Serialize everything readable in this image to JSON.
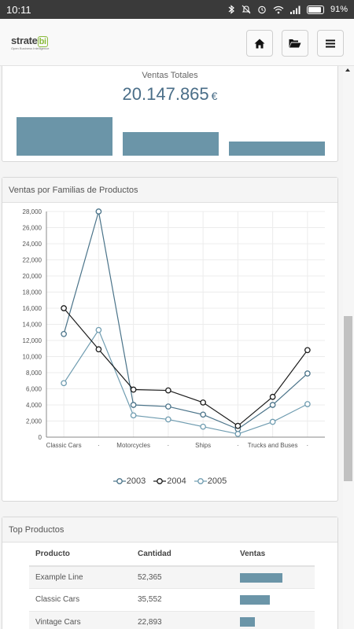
{
  "status_bar": {
    "time": "10:11",
    "battery": "91%",
    "icons": [
      "bluetooth-icon",
      "mute-icon",
      "alarm-icon",
      "wifi-icon",
      "signal-icon",
      "battery-icon"
    ]
  },
  "header": {
    "logo_main": "strate",
    "logo_bi": "bi",
    "logo_sub": "Open Business Intelligence",
    "buttons": [
      "home-icon",
      "folder-open-icon",
      "menu-icon"
    ]
  },
  "kpi": {
    "title": "Ventas Totales",
    "value": "20.147.865",
    "currency": "€",
    "bar_values": [
      1.0,
      0.62,
      0.37
    ]
  },
  "chart_panel": {
    "title": "Ventas por Familias de Productos"
  },
  "chart_data": {
    "type": "line",
    "categories": [
      "Classic Cars",
      "",
      "Motorcycles",
      "",
      "Ships",
      "",
      "Trucks and Buses",
      ""
    ],
    "x_tick_labels": [
      "Classic Cars",
      "·",
      "Motorcycles",
      "·",
      "Ships",
      "·",
      "Trucks and Buses",
      "·"
    ],
    "y_ticks": [
      "0",
      "2,000",
      "4,000",
      "6,000",
      "8,000",
      "10,000",
      "12,000",
      "14,000",
      "16,000",
      "18,000",
      "20,000",
      "22,000",
      "24,000",
      "26,000",
      "28,000"
    ],
    "ylim": [
      0,
      28000
    ],
    "grid": true,
    "legend_position": "bottom",
    "series": [
      {
        "name": "2003",
        "color": "#4a7389",
        "values": [
          12800,
          28000,
          4000,
          3800,
          2800,
          1000,
          4000,
          7900
        ]
      },
      {
        "name": "2004",
        "color": "#1b1b1b",
        "values": [
          16000,
          10900,
          5900,
          5800,
          4300,
          1400,
          5000,
          10800
        ]
      },
      {
        "name": "2005",
        "color": "#6f9cb0",
        "values": [
          6700,
          13300,
          2700,
          2200,
          1300,
          400,
          1900,
          4100
        ]
      }
    ]
  },
  "top_products": {
    "title": "Top Productos",
    "columns": [
      "Producto",
      "Cantidad",
      "Ventas"
    ],
    "rows": [
      {
        "producto": "Example Line",
        "cantidad": "52,365",
        "ventas_fraction": 1.0
      },
      {
        "producto": "Classic Cars",
        "cantidad": "35,552",
        "ventas_fraction": 0.7
      },
      {
        "producto": "Vintage Cars",
        "cantidad": "22,893",
        "ventas_fraction": 0.36
      }
    ]
  },
  "colors": {
    "accent": "#6b95a8",
    "kpi_text": "#4a6e88",
    "logo_green": "#8bbb3d",
    "status_bar": "#3a3a3a"
  }
}
